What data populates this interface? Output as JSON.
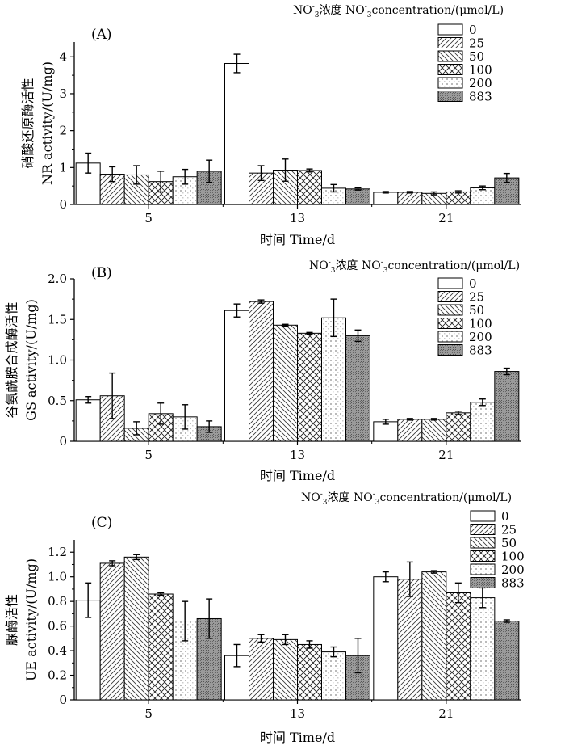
{
  "legend_title_parts": [
    "NO",
    "-",
    "3",
    "浓度 NO",
    "-",
    "3",
    "concentration/(μmol/L)"
  ],
  "chart_data": [
    {
      "type": "bar",
      "panel": "(A)",
      "categories": [
        "5",
        "13",
        "21"
      ],
      "xlabel": "时间 Time/d",
      "ylabel_cn": "硝酸还原酶活性",
      "ylabel_en": "NR activity/(U/mg)",
      "ylim": [
        0,
        4.4
      ],
      "yticks": [
        "0",
        "1",
        "2",
        "3",
        "4"
      ],
      "ytick_values": [
        0,
        1,
        2,
        3,
        4
      ],
      "series": [
        {
          "name": "0",
          "values": [
            1.12,
            3.82,
            0.33
          ],
          "errors": [
            0.27,
            0.25,
            0.02
          ]
        },
        {
          "name": "25",
          "values": [
            0.82,
            0.85,
            0.33
          ],
          "errors": [
            0.2,
            0.2,
            0.02
          ]
        },
        {
          "name": "50",
          "values": [
            0.8,
            0.93,
            0.3
          ],
          "errors": [
            0.25,
            0.3,
            0.04
          ]
        },
        {
          "name": "100",
          "values": [
            0.62,
            0.92,
            0.34
          ],
          "errors": [
            0.28,
            0.04,
            0.03
          ]
        },
        {
          "name": "200",
          "values": [
            0.75,
            0.44,
            0.45
          ],
          "errors": [
            0.2,
            0.1,
            0.05
          ]
        },
        {
          "name": "883",
          "values": [
            0.9,
            0.42,
            0.72
          ],
          "errors": [
            0.3,
            0.03,
            0.12
          ]
        }
      ]
    },
    {
      "type": "bar",
      "panel": "(B)",
      "categories": [
        "5",
        "13",
        "21"
      ],
      "xlabel": "时间 Time/d",
      "ylabel_cn": "谷氨酰胺合成酶活性",
      "ylabel_en": "GS activity/(U/mg)",
      "ylim": [
        0,
        2.0
      ],
      "yticks": [
        "0",
        "0.5",
        "1.0",
        "1.5",
        "2.0"
      ],
      "ytick_values": [
        0,
        0.5,
        1.0,
        1.5,
        2.0
      ],
      "series": [
        {
          "name": "0",
          "values": [
            0.51,
            1.61,
            0.24
          ],
          "errors": [
            0.04,
            0.08,
            0.03
          ]
        },
        {
          "name": "25",
          "values": [
            0.56,
            1.72,
            0.27
          ],
          "errors": [
            0.28,
            0.02,
            0.01
          ]
        },
        {
          "name": "50",
          "values": [
            0.16,
            1.43,
            0.27
          ],
          "errors": [
            0.08,
            0.01,
            0.01
          ]
        },
        {
          "name": "100",
          "values": [
            0.34,
            1.33,
            0.35
          ],
          "errors": [
            0.13,
            0.01,
            0.02
          ]
        },
        {
          "name": "200",
          "values": [
            0.3,
            1.52,
            0.48
          ],
          "errors": [
            0.15,
            0.23,
            0.04
          ]
        },
        {
          "name": "883",
          "values": [
            0.18,
            1.3,
            0.86
          ],
          "errors": [
            0.07,
            0.07,
            0.04
          ]
        }
      ]
    },
    {
      "type": "bar",
      "panel": "(C)",
      "categories": [
        "5",
        "13",
        "21"
      ],
      "xlabel": "时间 Time/d",
      "ylabel_cn": "脲酶活性",
      "ylabel_en": "UE activity/(U/mg)",
      "ylim": [
        0,
        1.3
      ],
      "yticks": [
        "0",
        "0.2",
        "0.4",
        "0.6",
        "0.8",
        "1.0",
        "1.2"
      ],
      "ytick_values": [
        0,
        0.2,
        0.4,
        0.6,
        0.8,
        1.0,
        1.2
      ],
      "series": [
        {
          "name": "0",
          "values": [
            0.81,
            0.36,
            1.0
          ],
          "errors": [
            0.14,
            0.09,
            0.04
          ]
        },
        {
          "name": "25",
          "values": [
            1.11,
            0.5,
            0.98
          ],
          "errors": [
            0.02,
            0.03,
            0.14
          ]
        },
        {
          "name": "50",
          "values": [
            1.16,
            0.49,
            1.04
          ],
          "errors": [
            0.02,
            0.04,
            0.01
          ]
        },
        {
          "name": "100",
          "values": [
            0.86,
            0.45,
            0.87
          ],
          "errors": [
            0.01,
            0.03,
            0.08
          ]
        },
        {
          "name": "200",
          "values": [
            0.64,
            0.39,
            0.83
          ],
          "errors": [
            0.16,
            0.04,
            0.08
          ]
        },
        {
          "name": "883",
          "values": [
            0.66,
            0.36,
            0.64
          ],
          "errors": [
            0.16,
            0.14,
            0.01
          ]
        }
      ]
    }
  ]
}
